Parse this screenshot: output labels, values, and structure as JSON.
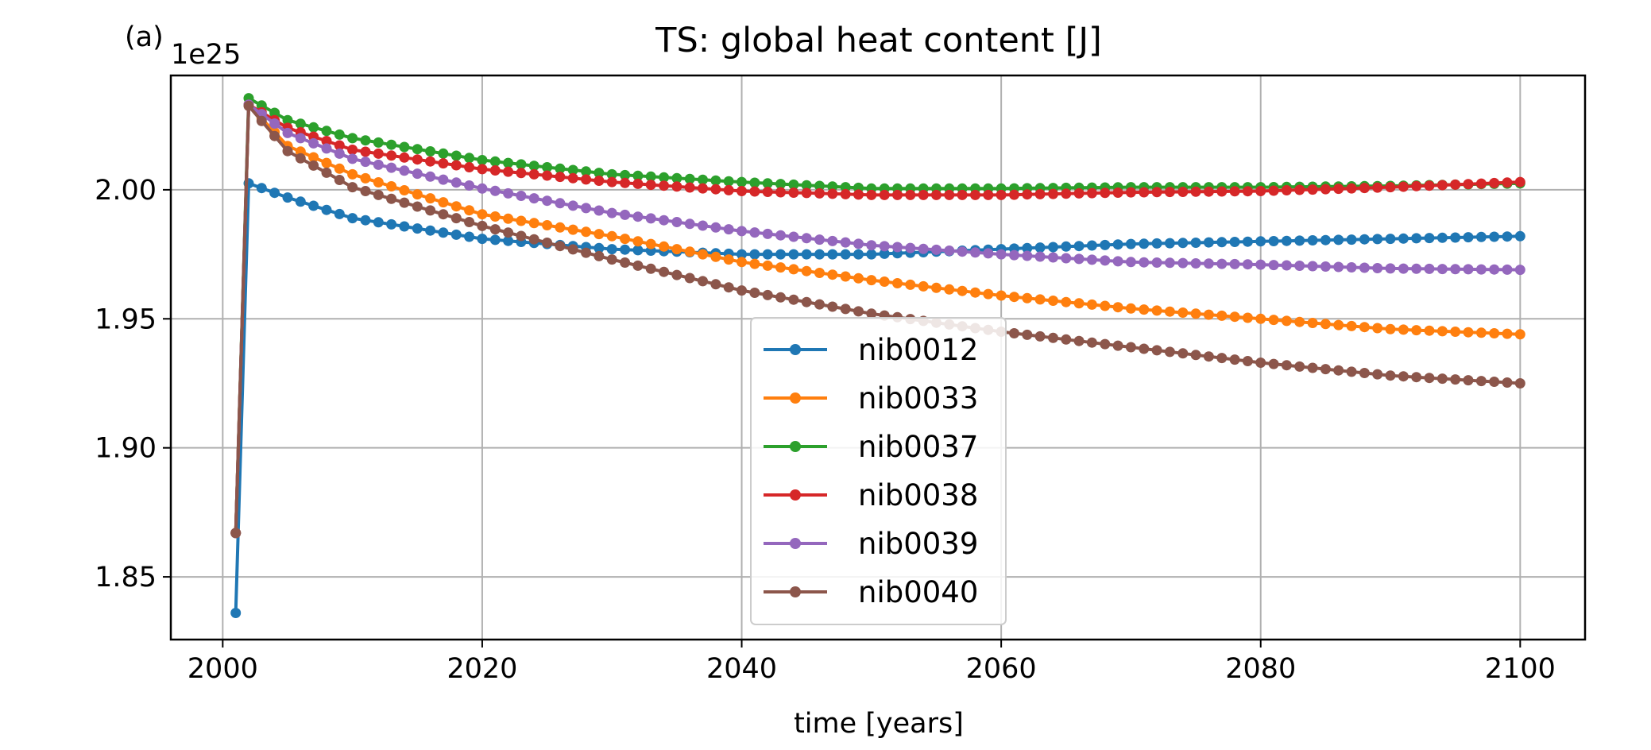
{
  "panel_label": "(a)",
  "chart_data": {
    "type": "line",
    "title": "TS: global heat content [J]",
    "xlabel": "time [years]",
    "ylabel": "",
    "y_offset_label": "1e25",
    "xlim": [
      1996,
      2105
    ],
    "ylim": [
      1.8257,
      2.0443
    ],
    "xticks": [
      2000,
      2020,
      2040,
      2060,
      2080,
      2100
    ],
    "xtick_labels": [
      "2000",
      "2020",
      "2040",
      "2060",
      "2080",
      "2100"
    ],
    "yticks": [
      1.85,
      1.9,
      1.95,
      2.0
    ],
    "ytick_labels": [
      "1.85",
      "1.90",
      "1.95",
      "2.00"
    ],
    "grid": true,
    "legend_position": "bottom-center",
    "marker": "circle",
    "series": [
      {
        "name": "nib0012",
        "color": "#1f77b4",
        "anchors": [
          [
            2001,
            1.836
          ],
          [
            2002,
            2.0025
          ],
          [
            2005,
            1.997
          ],
          [
            2010,
            1.989
          ],
          [
            2020,
            1.981
          ],
          [
            2030,
            1.977
          ],
          [
            2040,
            1.975
          ],
          [
            2050,
            1.975
          ],
          [
            2060,
            1.977
          ],
          [
            2070,
            1.979
          ],
          [
            2080,
            1.98
          ],
          [
            2090,
            1.981
          ],
          [
            2100,
            1.982
          ]
        ]
      },
      {
        "name": "nib0033",
        "color": "#ff7f0e",
        "anchors": [
          [
            2001,
            1.867
          ],
          [
            2002,
            2.033
          ],
          [
            2005,
            2.017
          ],
          [
            2010,
            2.006
          ],
          [
            2020,
            1.9905
          ],
          [
            2030,
            1.982
          ],
          [
            2040,
            1.972
          ],
          [
            2050,
            1.965
          ],
          [
            2060,
            1.959
          ],
          [
            2070,
            1.954
          ],
          [
            2080,
            1.95
          ],
          [
            2090,
            1.946
          ],
          [
            2100,
            1.944
          ]
        ]
      },
      {
        "name": "nib0037",
        "color": "#2ca02c",
        "anchors": [
          [
            2001,
            1.867
          ],
          [
            2002,
            2.0355
          ],
          [
            2005,
            2.027
          ],
          [
            2010,
            2.02
          ],
          [
            2020,
            2.0115
          ],
          [
            2030,
            2.006
          ],
          [
            2040,
            2.003
          ],
          [
            2050,
            2.0005
          ],
          [
            2060,
            2.0005
          ],
          [
            2070,
            2.001
          ],
          [
            2080,
            2.001
          ],
          [
            2090,
            2.0015
          ],
          [
            2100,
            2.0025
          ]
        ]
      },
      {
        "name": "nib0038",
        "color": "#d62728",
        "anchors": [
          [
            2001,
            1.867
          ],
          [
            2002,
            2.033
          ],
          [
            2005,
            2.024
          ],
          [
            2010,
            2.0155
          ],
          [
            2020,
            2.008
          ],
          [
            2030,
            2.003
          ],
          [
            2040,
            1.9995
          ],
          [
            2050,
            1.998
          ],
          [
            2060,
            1.998
          ],
          [
            2070,
            1.999
          ],
          [
            2080,
            1.9995
          ],
          [
            2090,
            2.001
          ],
          [
            2100,
            2.003
          ]
        ]
      },
      {
        "name": "nib0039",
        "color": "#9467bd",
        "anchors": [
          [
            2001,
            1.867
          ],
          [
            2002,
            2.033
          ],
          [
            2005,
            2.022
          ],
          [
            2010,
            2.012
          ],
          [
            2020,
            2.0005
          ],
          [
            2030,
            1.991
          ],
          [
            2040,
            1.984
          ],
          [
            2050,
            1.9785
          ],
          [
            2060,
            1.975
          ],
          [
            2070,
            1.972
          ],
          [
            2080,
            1.971
          ],
          [
            2090,
            1.9695
          ],
          [
            2100,
            1.969
          ]
        ]
      },
      {
        "name": "nib0040",
        "color": "#8c564b",
        "anchors": [
          [
            2001,
            1.867
          ],
          [
            2002,
            2.0325
          ],
          [
            2005,
            2.015
          ],
          [
            2010,
            2.001
          ],
          [
            2020,
            1.986
          ],
          [
            2030,
            1.973
          ],
          [
            2040,
            1.961
          ],
          [
            2050,
            1.952
          ],
          [
            2060,
            1.945
          ],
          [
            2070,
            1.939
          ],
          [
            2080,
            1.933
          ],
          [
            2090,
            1.928
          ],
          [
            2100,
            1.925
          ]
        ]
      }
    ]
  }
}
